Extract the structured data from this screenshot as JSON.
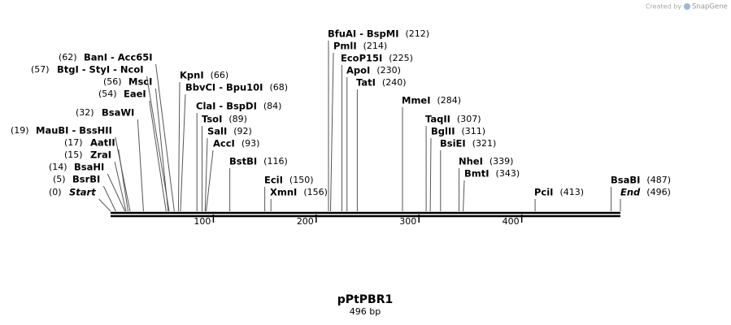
{
  "credit": {
    "prefix": "Created by",
    "brand": "SnapGene"
  },
  "map": {
    "name": "pPtPBR1",
    "length_label": "496 bp",
    "length": 496,
    "ticks": [
      100,
      200,
      300,
      400
    ],
    "sites": [
      {
        "name": "Start",
        "label": "(0)",
        "position": 0
      },
      {
        "name": "BsrBI",
        "label": "(5)",
        "position": 5
      },
      {
        "name": "BsaHI",
        "label": "(14)",
        "position": 14
      },
      {
        "name": "ZraI",
        "label": "(15)",
        "position": 15
      },
      {
        "name": "AatII",
        "label": "(17)",
        "position": 17
      },
      {
        "name": "MauBI  -  BssHII",
        "label": "(19)",
        "position": 19
      },
      {
        "name": "BsaWI",
        "label": "(32)",
        "position": 32
      },
      {
        "name": "EaeI",
        "label": "(54)",
        "position": 54
      },
      {
        "name": "MscI",
        "label": "(56)",
        "position": 56
      },
      {
        "name": "BtgI  -  StyI  -  NcoI",
        "label": "(57)",
        "position": 57
      },
      {
        "name": "BanI  -  Acc65I",
        "label": "(62)",
        "position": 62
      },
      {
        "name": "KpnI",
        "label": "(66)",
        "position": 66
      },
      {
        "name": "BbvCI  -  Bpu10I",
        "label": "(68)",
        "position": 68
      },
      {
        "name": "ClaI  -  BspDI",
        "label": "(84)",
        "position": 84
      },
      {
        "name": "TsoI",
        "label": "(89)",
        "position": 89
      },
      {
        "name": "SalI",
        "label": "(92)",
        "position": 92
      },
      {
        "name": "AccI",
        "label": "(93)",
        "position": 93
      },
      {
        "name": "BstBI",
        "label": "(116)",
        "position": 116
      },
      {
        "name": "EciI",
        "label": "(150)",
        "position": 150
      },
      {
        "name": "XmnI",
        "label": "(156)",
        "position": 156
      },
      {
        "name": "BfuAI  -  BspMI",
        "label": "(212)",
        "position": 212
      },
      {
        "name": "PmlI",
        "label": "(214)",
        "position": 214
      },
      {
        "name": "EcoP15I",
        "label": "(225)",
        "position": 225
      },
      {
        "name": "ApoI",
        "label": "(230)",
        "position": 230
      },
      {
        "name": "TatI",
        "label": "(240)",
        "position": 240
      },
      {
        "name": "MmeI",
        "label": "(284)",
        "position": 284
      },
      {
        "name": "TaqII",
        "label": "(307)",
        "position": 307
      },
      {
        "name": "BglII",
        "label": "(311)",
        "position": 311
      },
      {
        "name": "BsiEI",
        "label": "(321)",
        "position": 321
      },
      {
        "name": "NheI",
        "label": "(339)",
        "position": 339
      },
      {
        "name": "BmtI",
        "label": "(343)",
        "position": 343
      },
      {
        "name": "PciI",
        "label": "(413)",
        "position": 413
      },
      {
        "name": "BsaBI",
        "label": "(487)",
        "position": 487
      },
      {
        "name": "End",
        "label": "(496)",
        "position": 496
      }
    ]
  }
}
